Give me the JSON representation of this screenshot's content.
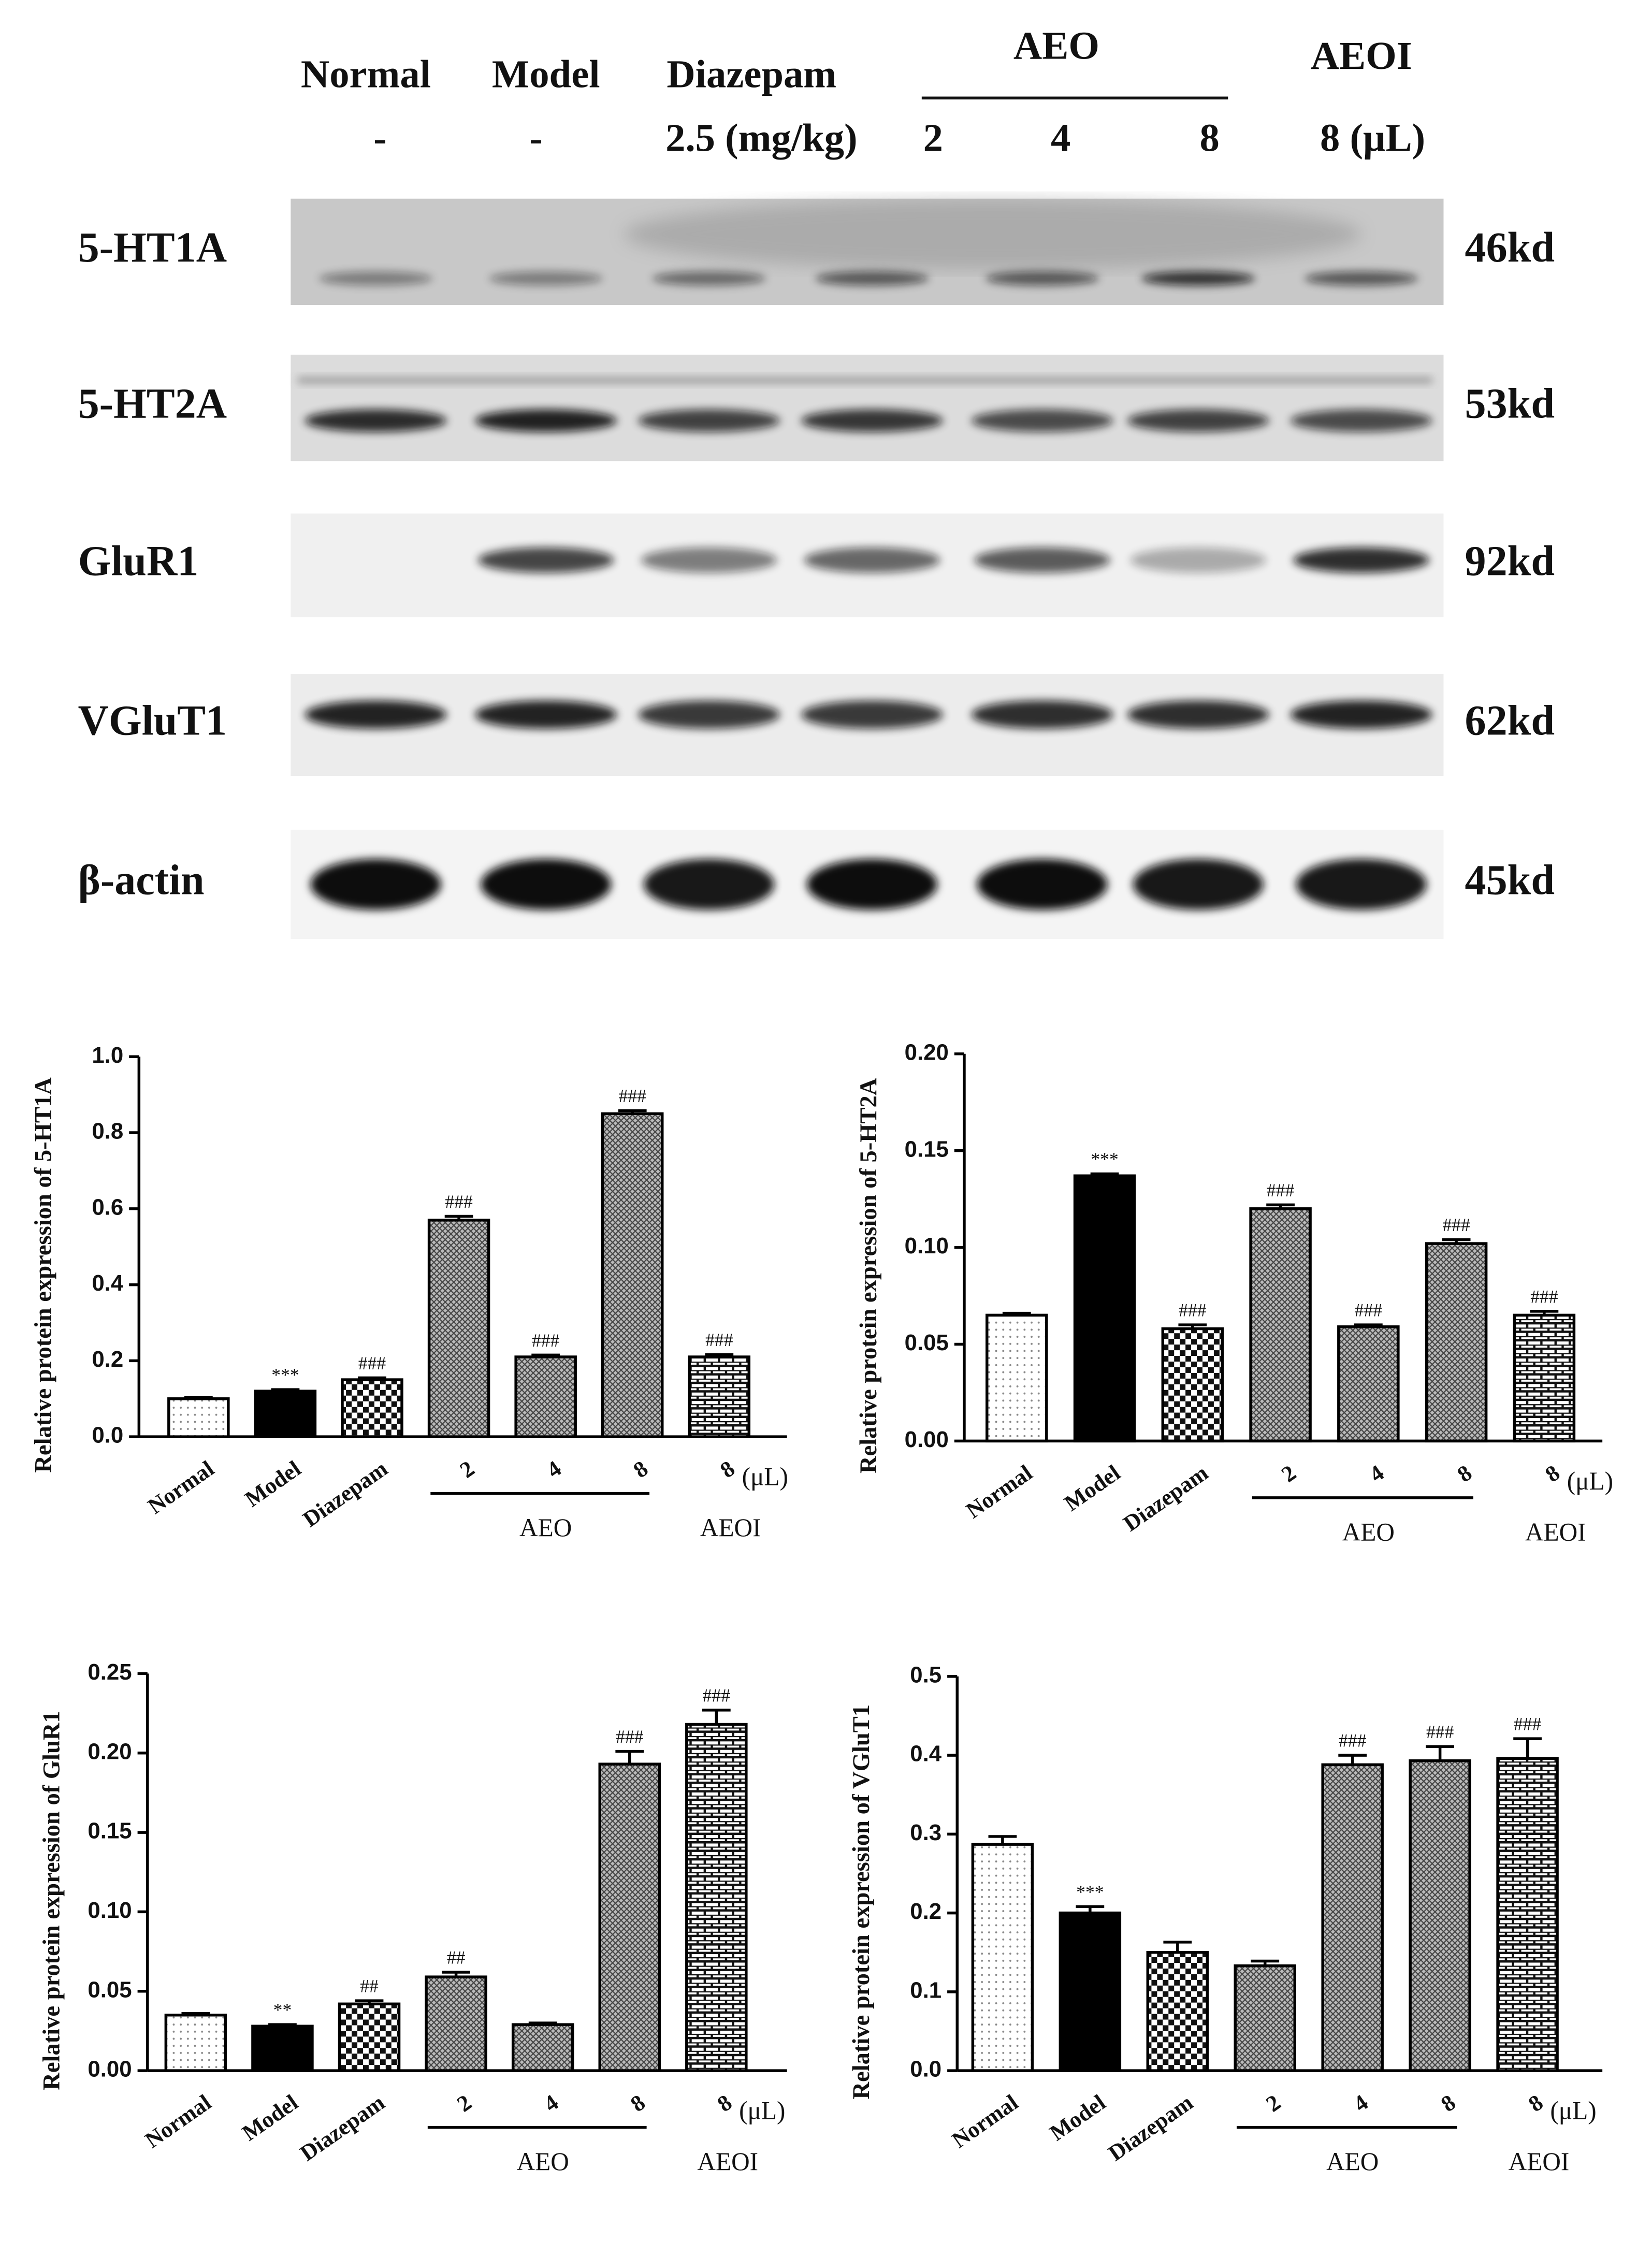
{
  "blot": {
    "top_labels": [
      "Normal",
      "Model",
      "Diazepam",
      "AEO",
      "AEOI"
    ],
    "dose_labels": [
      "-",
      "-",
      "2.5 (mg/kg)",
      "2",
      "4",
      "8",
      "8 (μL)"
    ],
    "rows": [
      {
        "protein": "5-HT1A",
        "size": "46kd"
      },
      {
        "protein": "5-HT2A",
        "size": "53kd"
      },
      {
        "protein": "GluR1",
        "size": "92kd"
      },
      {
        "protein": "VGluT1",
        "size": "62kd"
      },
      {
        "protein": "β-actin",
        "size": "45kd"
      }
    ]
  },
  "chart_data": [
    {
      "type": "bar",
      "ylabel": "Relative protein expression of 5-HT1A",
      "categories": [
        "Normal",
        "Model",
        "Diazepam",
        "2",
        "4",
        "8",
        "8"
      ],
      "category_groups": [
        null,
        null,
        null,
        "AEO",
        "AEO",
        "AEO",
        "AEOI"
      ],
      "unit_label": "(μL)",
      "values": [
        0.1,
        0.12,
        0.15,
        0.57,
        0.21,
        0.85,
        0.21
      ],
      "errors": [
        0.004,
        0.004,
        0.005,
        0.01,
        0.005,
        0.008,
        0.006
      ],
      "annotations": [
        null,
        "***",
        "###",
        "###",
        "###",
        "###",
        "###"
      ],
      "ylim": [
        0,
        1.0
      ],
      "yticks": [
        {
          "value": 0,
          "label": "0.0"
        },
        0.2,
        0.4,
        0.6,
        0.8,
        {
          "value": 1.0,
          "label": "1.0"
        }
      ]
    },
    {
      "type": "bar",
      "ylabel": "Relative protein expression of 5-HT2A",
      "categories": [
        "Normal",
        "Model",
        "Diazepam",
        "2",
        "4",
        "8",
        "8"
      ],
      "category_groups": [
        null,
        null,
        null,
        "AEO",
        "AEO",
        "AEO",
        "AEOI"
      ],
      "unit_label": "(μL)",
      "values": [
        0.065,
        0.137,
        0.058,
        0.12,
        0.059,
        0.102,
        0.065
      ],
      "errors": [
        0.001,
        0.001,
        0.002,
        0.002,
        0.001,
        0.002,
        0.002
      ],
      "annotations": [
        null,
        "***",
        "###",
        "###",
        "###",
        "###",
        "###"
      ],
      "ylim": [
        0,
        0.2
      ],
      "yticks": [
        {
          "value": 0,
          "label": "0.00"
        },
        0.05,
        {
          "value": 0.1,
          "label": "0.10"
        },
        0.15,
        {
          "value": 0.2,
          "label": "0.20"
        }
      ]
    },
    {
      "type": "bar",
      "ylabel": "Relative protein expression of GluR1",
      "categories": [
        "Normal",
        "Model",
        "Diazepam",
        "2",
        "4",
        "8",
        "8"
      ],
      "category_groups": [
        null,
        null,
        null,
        "AEO",
        "AEO",
        "AEO",
        "AEOI"
      ],
      "unit_label": "(μL)",
      "values": [
        0.035,
        0.028,
        0.042,
        0.059,
        0.029,
        0.193,
        0.218
      ],
      "errors": [
        0.001,
        0.001,
        0.002,
        0.003,
        0.001,
        0.008,
        0.009
      ],
      "annotations": [
        null,
        "**",
        "##",
        "##",
        null,
        "###",
        "###"
      ],
      "ylim": [
        0,
        0.25
      ],
      "yticks": [
        {
          "value": 0,
          "label": "0.00"
        },
        0.05,
        {
          "value": 0.1,
          "label": "0.10"
        },
        0.15,
        {
          "value": 0.2,
          "label": "0.20"
        },
        0.25
      ]
    },
    {
      "type": "bar",
      "ylabel": "Relative protein expression of VGluT1",
      "categories": [
        "Normal",
        "Model",
        "Diazepam",
        "2",
        "4",
        "8",
        "8"
      ],
      "category_groups": [
        null,
        null,
        null,
        "AEO",
        "AEO",
        "AEO",
        "AEOI"
      ],
      "unit_label": "(μL)",
      "values": [
        0.287,
        0.2,
        0.15,
        0.133,
        0.388,
        0.393,
        0.396
      ],
      "errors": [
        0.01,
        0.008,
        0.013,
        0.006,
        0.012,
        0.018,
        0.025
      ],
      "annotations": [
        null,
        "***",
        null,
        null,
        "###",
        "###",
        "###"
      ],
      "ylim": [
        0,
        0.5
      ],
      "yticks": [
        {
          "value": 0,
          "label": "0.0"
        },
        0.1,
        0.2,
        0.3,
        0.4,
        0.5
      ]
    }
  ]
}
